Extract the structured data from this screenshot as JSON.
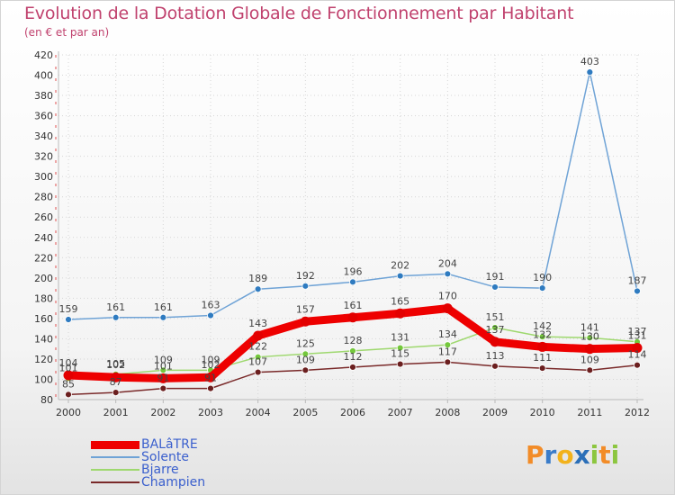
{
  "chart_data": {
    "type": "line",
    "title": "Evolution de la Dotation Globale de Fonctionnement par Habitant",
    "subtitle": "(en € et par an)",
    "categories": [
      "2000",
      "2001",
      "2002",
      "2003",
      "2004",
      "2005",
      "2006",
      "2007",
      "2008",
      "2009",
      "2010",
      "2011",
      "2012"
    ],
    "ylim": [
      80,
      420
    ],
    "yticks": [
      "80",
      "100",
      "120",
      "140",
      "160",
      "180",
      "200",
      "220",
      "240",
      "260",
      "280",
      "300",
      "320",
      "340",
      "360",
      "380",
      "400",
      "420"
    ],
    "series": [
      {
        "name": "BALâTRE",
        "color": "#ee0000",
        "marker": "#e30000",
        "values": [
          104,
          102,
          101,
          102,
          143,
          157,
          161,
          165,
          170,
          137,
          132,
          130,
          131
        ]
      },
      {
        "name": "Solente",
        "color": "#6fa3d6",
        "marker": "#2f7bc0",
        "values": [
          159,
          161,
          161,
          163,
          189,
          192,
          196,
          202,
          204,
          191,
          190,
          403,
          187
        ]
      },
      {
        "name": "Bjarre",
        "color": "#9ed86e",
        "marker": "#74c83c",
        "values": [
          101,
          105,
          109,
          109,
          122,
          125,
          128,
          131,
          134,
          151,
          142,
          141,
          137
        ]
      },
      {
        "name": "Champien",
        "color": "#7a2a2a",
        "marker": "#6b1f1f",
        "values": [
          85,
          87,
          91,
          91,
          107,
          109,
          112,
          115,
          117,
          113,
          111,
          109,
          114
        ]
      }
    ]
  },
  "legend": {
    "items": [
      "BALâTRE",
      "Solente",
      "Bjarre",
      "Champien"
    ]
  },
  "logo": {
    "letters": [
      "P",
      "r",
      "o",
      "x",
      "i",
      "t",
      "i"
    ],
    "colors": [
      "#f28c28",
      "#3a7cc9",
      "#f2b21c",
      "#2b6fb8",
      "#8cc63f",
      "#f28c28",
      "#8cc63f"
    ]
  }
}
